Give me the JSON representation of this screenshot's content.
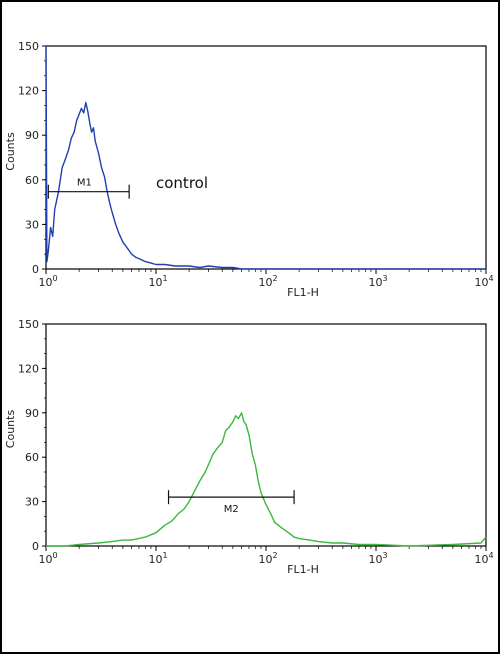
{
  "chart_data": [
    {
      "type": "line",
      "series_color": "#1f3fb0",
      "xlabel": "FL1-H",
      "ylabel": "Counts",
      "x_scale": "log",
      "xlim": [
        1,
        10000
      ],
      "ylim": [
        0,
        150
      ],
      "y_ticks": [
        "0",
        "30",
        "60",
        "90",
        "120",
        "150"
      ],
      "x_tick_bases": [
        "10",
        "10",
        "10",
        "10",
        "10"
      ],
      "x_tick_exps": [
        "0",
        "1",
        "2",
        "3",
        "4"
      ],
      "gate": {
        "label": "M1",
        "x_start": 1.05,
        "x_end": 5.7,
        "y": 52
      },
      "annotation": {
        "text": "control",
        "x": 10,
        "y": 58
      },
      "series": [
        {
          "x": [
            1.0,
            1.02,
            1.05,
            1.1,
            1.15,
            1.2,
            1.3,
            1.4,
            1.5,
            1.6,
            1.7,
            1.8,
            1.9,
            2.0,
            2.1,
            2.2,
            2.3,
            2.4,
            2.5,
            2.6,
            2.7,
            2.8,
            3.0,
            3.2,
            3.4,
            3.6,
            3.8,
            4.0,
            4.3,
            4.6,
            5.0,
            5.5,
            6.0,
            6.5,
            7.0,
            8.0,
            9.0,
            10,
            12,
            15,
            20,
            25,
            30,
            40,
            50,
            60,
            100,
            1000,
            10000
          ],
          "y": [
            150,
            5,
            12,
            28,
            22,
            40,
            52,
            68,
            74,
            80,
            88,
            92,
            100,
            104,
            108,
            105,
            112,
            106,
            98,
            92,
            95,
            86,
            78,
            68,
            62,
            52,
            44,
            38,
            30,
            24,
            18,
            14,
            10,
            8,
            7,
            5,
            4,
            3,
            3,
            2,
            2,
            1,
            2,
            1,
            1,
            0,
            0,
            0,
            0
          ]
        }
      ]
    },
    {
      "type": "line",
      "series_color": "#3cb83c",
      "xlabel": "FL1-H",
      "ylabel": "Counts",
      "x_scale": "log",
      "xlim": [
        1,
        10000
      ],
      "ylim": [
        0,
        150
      ],
      "y_ticks": [
        "0",
        "30",
        "60",
        "90",
        "120",
        "150"
      ],
      "x_tick_bases": [
        "10",
        "10",
        "10",
        "10",
        "10"
      ],
      "x_tick_exps": [
        "0",
        "1",
        "2",
        "3",
        "4"
      ],
      "gate": {
        "label": "M2",
        "x_start": 13,
        "x_end": 180,
        "y": 33
      },
      "series": [
        {
          "x": [
            1.0,
            1.5,
            2.0,
            3.0,
            4.0,
            5.0,
            6.0,
            8.0,
            10,
            12,
            14,
            16,
            18,
            20,
            22,
            25,
            28,
            30,
            33,
            36,
            40,
            43,
            46,
            50,
            53,
            56,
            60,
            63,
            66,
            70,
            75,
            80,
            85,
            90,
            100,
            110,
            120,
            140,
            160,
            180,
            200,
            250,
            300,
            400,
            500,
            700,
            1000,
            2000,
            5000,
            9000,
            10000
          ],
          "y": [
            0,
            0,
            1,
            2,
            3,
            4,
            4,
            6,
            9,
            14,
            17,
            22,
            25,
            30,
            36,
            44,
            50,
            55,
            62,
            66,
            70,
            78,
            80,
            84,
            88,
            86,
            90,
            84,
            82,
            75,
            62,
            55,
            44,
            36,
            28,
            22,
            16,
            12,
            9,
            6,
            5,
            4,
            3,
            2,
            2,
            1,
            1,
            0,
            1,
            2,
            6
          ]
        }
      ]
    }
  ]
}
